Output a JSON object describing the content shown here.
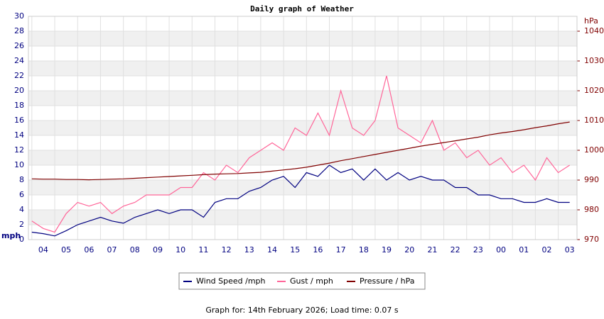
{
  "chart_data": {
    "type": "line",
    "title": "Daily graph of Weather",
    "y_label": "mph",
    "y2_label": "hPa",
    "footer": "Graph for: 14th February 2026; Load time: 0.07 s",
    "x": [
      4.0,
      4.5,
      5.0,
      5.5,
      6.0,
      6.5,
      7.0,
      7.5,
      8.0,
      8.5,
      9.0,
      9.5,
      10.0,
      10.5,
      11.0,
      11.5,
      12.0,
      12.5,
      13.0,
      13.5,
      14.0,
      14.5,
      15.0,
      15.5,
      16.0,
      16.5,
      17.0,
      17.5,
      18.0,
      18.5,
      19.0,
      19.5,
      20.0,
      20.5,
      21.0,
      21.5,
      22.0,
      22.5,
      23.0,
      23.5,
      24.0,
      24.5,
      25.0,
      25.5,
      26.0,
      26.5,
      27.0,
      27.5
    ],
    "xlim": [
      3.85,
      27.82
    ],
    "xticks": [
      {
        "value": 4,
        "label": "04"
      },
      {
        "value": 5,
        "label": "05"
      },
      {
        "value": 6,
        "label": "06"
      },
      {
        "value": 7,
        "label": "07"
      },
      {
        "value": 8,
        "label": "08"
      },
      {
        "value": 9,
        "label": "09"
      },
      10,
      11,
      12,
      13,
      14,
      15,
      16,
      17,
      18,
      19,
      20,
      21,
      22,
      23,
      {
        "value": 24,
        "label": "00"
      },
      {
        "value": 25,
        "label": "01"
      },
      {
        "value": 26,
        "label": "02"
      },
      {
        "value": 27,
        "label": "03"
      }
    ],
    "ylim": [
      0,
      30
    ],
    "yticks": [
      0,
      2,
      4,
      6,
      8,
      10,
      12,
      14,
      16,
      18,
      20,
      22,
      24,
      26,
      28,
      30
    ],
    "y2lim": [
      970,
      1045
    ],
    "y2ticks": [
      970,
      980,
      990,
      1000,
      1010,
      1020,
      1030,
      1040
    ],
    "grid": true,
    "series": [
      {
        "name": "Wind Speed /mph",
        "color": "#000080",
        "values": [
          1,
          0.8,
          0.5,
          1.2,
          2,
          2.5,
          3,
          2.5,
          2.2,
          3,
          3.5,
          4,
          3.5,
          4,
          4,
          3,
          5,
          5.5,
          5.5,
          6.5,
          7,
          8,
          8.5,
          7,
          9,
          8.5,
          10,
          9,
          9.5,
          8,
          9.5,
          8,
          9,
          8,
          8.5,
          8,
          8,
          7,
          7,
          6,
          6,
          5.5,
          5.5,
          5,
          5,
          5.5,
          5,
          5
        ]
      },
      {
        "name": "Gust / mph",
        "color": "#ff6699",
        "values": [
          2.5,
          1.5,
          1,
          3.5,
          5,
          4.5,
          5,
          3.5,
          4.5,
          5,
          6,
          6,
          6,
          7,
          7,
          9,
          8,
          10,
          9,
          11,
          12,
          13,
          12,
          15,
          14,
          17,
          14,
          20,
          15,
          14,
          16,
          22,
          15,
          14,
          13,
          16,
          12,
          13,
          11,
          12,
          10,
          11,
          9,
          10,
          8,
          11,
          9,
          10
        ]
      },
      {
        "name": "Pressure / hPa",
        "color": "#800000",
        "axis": "y2",
        "values": [
          990.4,
          990.3,
          990.3,
          990.2,
          990.2,
          990.1,
          990.2,
          990.3,
          990.4,
          990.6,
          990.8,
          991,
          991.2,
          991.4,
          991.6,
          991.8,
          992,
          992.1,
          992.2,
          992.4,
          992.6,
          993,
          993.4,
          993.8,
          994.3,
          995,
          995.7,
          996.5,
          997.2,
          997.9,
          998.6,
          999.3,
          1000,
          1000.7,
          1001.4,
          1002,
          1002.6,
          1003.2,
          1003.8,
          1004.4,
          1005.2,
          1005.8,
          1006.3,
          1006.9,
          1007.6,
          1008.2,
          1008.9,
          1009.5
        ]
      }
    ]
  }
}
